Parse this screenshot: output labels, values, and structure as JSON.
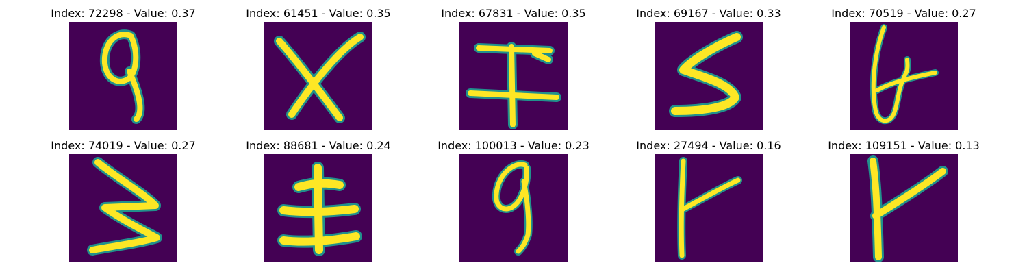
{
  "colors": {
    "background": "#440154",
    "stroke_glow": "#21918c",
    "stroke_core": "#fde725"
  },
  "panels": [
    {
      "title": "Index: 72298 - Value: 0.37",
      "glyph": "nine-like"
    },
    {
      "title": "Index: 61451 - Value: 0.35",
      "glyph": "x"
    },
    {
      "title": "Index: 67831 - Value: 0.35",
      "glyph": "double-bar-cross"
    },
    {
      "title": "Index: 69167 - Value: 0.33",
      "glyph": "s-like"
    },
    {
      "title": "Index: 70519 - Value: 0.27",
      "glyph": "six-with-cross"
    },
    {
      "title": "Index: 74019 - Value: 0.27",
      "glyph": "zigzag"
    },
    {
      "title": "Index: 88681 - Value: 0.24",
      "glyph": "earth-like"
    },
    {
      "title": "Index: 100013 - Value: 0.23",
      "glyph": "nine-like"
    },
    {
      "title": "Index: 27494 - Value: 0.16",
      "glyph": "y-like"
    },
    {
      "title": "Index: 109151 - Value: 0.13",
      "glyph": "y-like"
    }
  ]
}
